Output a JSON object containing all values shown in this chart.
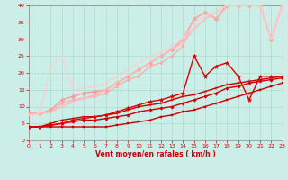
{
  "xlabel": "Vent moyen/en rafales ( km/h )",
  "xlim": [
    0,
    23
  ],
  "ylim": [
    0,
    40
  ],
  "xticks": [
    0,
    1,
    2,
    3,
    4,
    5,
    6,
    7,
    8,
    9,
    10,
    11,
    12,
    13,
    14,
    15,
    16,
    17,
    18,
    19,
    20,
    21,
    22,
    23
  ],
  "yticks": [
    0,
    5,
    10,
    15,
    20,
    25,
    30,
    35,
    40
  ],
  "bg_color": "#cceee8",
  "grid_color": "#aaddcc",
  "lines": [
    {
      "x": [
        0,
        1,
        2,
        3,
        4,
        5,
        6,
        7,
        8,
        9,
        10,
        11,
        12,
        13,
        14,
        15,
        16,
        17,
        18,
        19,
        20,
        21,
        22,
        23
      ],
      "y": [
        4.0,
        4.0,
        4.0,
        4.0,
        4.0,
        4.0,
        4.0,
        4.0,
        4.5,
        5.0,
        5.5,
        6.0,
        7.0,
        7.5,
        8.5,
        9.0,
        10.0,
        11.0,
        12.0,
        13.0,
        14.0,
        15.0,
        16.0,
        17.0
      ],
      "color": "#cc0000",
      "lw": 1.0,
      "marker": "s",
      "ms": 2.0,
      "alpha": 1.0
    },
    {
      "x": [
        0,
        1,
        2,
        3,
        4,
        5,
        6,
        7,
        8,
        9,
        10,
        11,
        12,
        13,
        14,
        15,
        16,
        17,
        18,
        19,
        20,
        21,
        22,
        23
      ],
      "y": [
        4.0,
        4.0,
        4.5,
        5.0,
        5.5,
        6.0,
        6.0,
        6.5,
        7.0,
        7.5,
        8.5,
        9.0,
        9.5,
        10.0,
        11.0,
        12.0,
        13.0,
        14.0,
        15.5,
        16.0,
        17.0,
        17.5,
        18.0,
        18.5
      ],
      "color": "#cc0000",
      "lw": 1.0,
      "marker": "D",
      "ms": 1.8,
      "alpha": 1.0
    },
    {
      "x": [
        0,
        1,
        2,
        3,
        4,
        5,
        6,
        7,
        8,
        9,
        10,
        11,
        12,
        13,
        14,
        15,
        16,
        17,
        18,
        19,
        20,
        21,
        22,
        23
      ],
      "y": [
        4.0,
        4.0,
        5.0,
        6.0,
        6.5,
        7.0,
        7.0,
        7.5,
        8.0,
        9.0,
        10.0,
        10.5,
        11.0,
        12.0,
        13.0,
        13.5,
        14.5,
        15.5,
        16.5,
        17.0,
        17.5,
        18.0,
        18.5,
        19.0
      ],
      "color": "#cc0000",
      "lw": 1.0,
      "marker": "+",
      "ms": 3.0,
      "alpha": 1.0
    },
    {
      "x": [
        0,
        1,
        2,
        3,
        4,
        5,
        6,
        7,
        8,
        9,
        10,
        11,
        12,
        13,
        14,
        15,
        16,
        17,
        18,
        19,
        20,
        21,
        22,
        23
      ],
      "y": [
        4.0,
        4.0,
        4.5,
        5.0,
        6.0,
        6.5,
        7.0,
        7.5,
        8.5,
        9.5,
        10.5,
        11.5,
        12.0,
        13.0,
        14.0,
        25.0,
        19.0,
        22.0,
        23.0,
        19.0,
        12.0,
        19.0,
        19.0,
        19.0
      ],
      "color": "#dd0000",
      "lw": 1.0,
      "marker": "*",
      "ms": 3.5,
      "alpha": 1.0
    },
    {
      "x": [
        0,
        1,
        2,
        3,
        4,
        5,
        6,
        7,
        8,
        9,
        10,
        11,
        12,
        13,
        14,
        15,
        16,
        17,
        18,
        19,
        20,
        21,
        22,
        23
      ],
      "y": [
        8.0,
        8.0,
        9.0,
        12.0,
        13.0,
        14.0,
        14.5,
        15.0,
        17.0,
        19.0,
        21.0,
        23.0,
        25.0,
        27.0,
        30.0,
        36.0,
        38.0,
        36.0,
        40.0,
        40.0,
        40.0,
        40.0,
        30.0,
        40.0
      ],
      "color": "#ff9999",
      "lw": 1.0,
      "marker": "D",
      "ms": 2.5,
      "alpha": 1.0
    },
    {
      "x": [
        0,
        1,
        2,
        3,
        4,
        5,
        6,
        7,
        8,
        9,
        10,
        11,
        12,
        13,
        14,
        15,
        16,
        17,
        18,
        19,
        20,
        21,
        22,
        23
      ],
      "y": [
        8.0,
        8.0,
        8.5,
        11.0,
        12.0,
        12.5,
        13.0,
        14.0,
        16.0,
        18.0,
        19.0,
        22.0,
        23.0,
        25.0,
        28.0,
        36.0,
        38.0,
        36.0,
        40.0,
        40.0,
        40.0,
        40.0,
        30.0,
        40.0
      ],
      "color": "#ffaaaa",
      "lw": 1.0,
      "marker": "o",
      "ms": 2.0,
      "alpha": 0.9
    },
    {
      "x": [
        0,
        1,
        2,
        3,
        4,
        5,
        6,
        7,
        8,
        9,
        10,
        11,
        12,
        13,
        14,
        15,
        16,
        17,
        18,
        19,
        20,
        21,
        22,
        23
      ],
      "y": [
        7.5,
        8.0,
        8.5,
        10.0,
        11.5,
        12.5,
        13.5,
        15.0,
        17.0,
        19.0,
        21.0,
        23.0,
        25.0,
        27.0,
        29.0,
        33.0,
        36.0,
        38.0,
        40.0,
        40.0,
        40.0,
        40.0,
        30.0,
        40.0
      ],
      "color": "#ffbbbb",
      "lw": 1.5,
      "marker": null,
      "ms": 0,
      "alpha": 0.85
    },
    {
      "x": [
        0,
        1,
        2,
        3,
        4,
        5,
        6,
        7,
        8,
        9,
        10,
        11,
        12,
        13,
        14,
        15,
        16,
        17,
        18,
        19,
        20,
        21,
        22,
        23
      ],
      "y": [
        7.5,
        8.0,
        22.0,
        25.0,
        15.0,
        15.5,
        16.0,
        17.0,
        19.0,
        21.0,
        23.0,
        25.0,
        26.0,
        28.0,
        30.0,
        35.0,
        37.0,
        38.0,
        40.0,
        40.0,
        40.0,
        40.0,
        30.0,
        40.0
      ],
      "color": "#ffcccc",
      "lw": 1.2,
      "marker": null,
      "ms": 0,
      "alpha": 0.75
    }
  ]
}
